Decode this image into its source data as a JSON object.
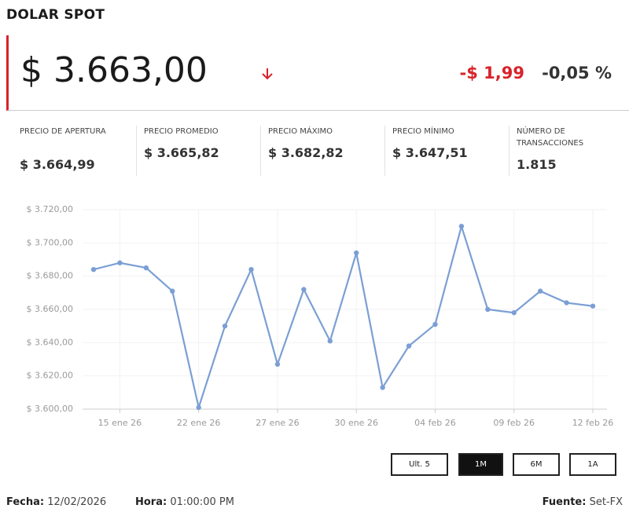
{
  "header": {
    "title": "DOLAR SPOT",
    "price": "$ 3.663,00",
    "change": "-$ 1,99",
    "change_pct": "-0,05 %"
  },
  "stats": [
    {
      "label": "Precio de apertura",
      "value": "$ 3.664,99"
    },
    {
      "label": "Precio promedio",
      "value": "$ 3.665,82"
    },
    {
      "label": "Precio máximo",
      "value": "$ 3.682,82"
    },
    {
      "label": "Precio mínimo",
      "value": "$ 3.647,51"
    },
    {
      "label": "Número de transacciones",
      "value": "1.815"
    }
  ],
  "chart_data": {
    "type": "line",
    "categories": [
      null,
      "15 ene 26",
      null,
      null,
      "22 ene 26",
      null,
      null,
      "27 ene 26",
      null,
      null,
      "30 ene 26",
      null,
      null,
      "04 feb 26",
      null,
      null,
      "09 feb 26",
      null,
      null,
      "12 feb 26"
    ],
    "series": [
      {
        "name": "Dolar spot",
        "color": "#7b9fd4",
        "values": [
          3684,
          3688,
          3685,
          3671,
          3601,
          3650,
          3684,
          3627,
          3672,
          3641,
          3694,
          3613,
          3638,
          3651,
          3710,
          3660,
          3658,
          3671,
          3664,
          3662
        ]
      }
    ],
    "ylim": [
      3600,
      3720
    ],
    "yticks": [
      {
        "value": 3600,
        "label": "$ 3.600,00"
      },
      {
        "value": 3620,
        "label": "$ 3.620,00"
      },
      {
        "value": 3640,
        "label": "$ 3.640,00"
      },
      {
        "value": 3660,
        "label": "$ 3.660,00"
      },
      {
        "value": 3680,
        "label": "$ 3.680,00"
      },
      {
        "value": 3700,
        "label": "$ 3.700,00"
      },
      {
        "value": 3720,
        "label": "$ 3.720,00"
      }
    ],
    "grid": true
  },
  "range_buttons": [
    {
      "label": "Ult. 5",
      "active": false
    },
    {
      "label": "1M",
      "active": true
    },
    {
      "label": "6M",
      "active": false
    },
    {
      "label": "1A",
      "active": false
    }
  ],
  "footer": {
    "date_label": "Fecha:",
    "date": "12/02/2026",
    "time_label": "Hora:",
    "time": "01:00:00 PM",
    "source_label": "Fuente:",
    "source": "Set-FX"
  }
}
